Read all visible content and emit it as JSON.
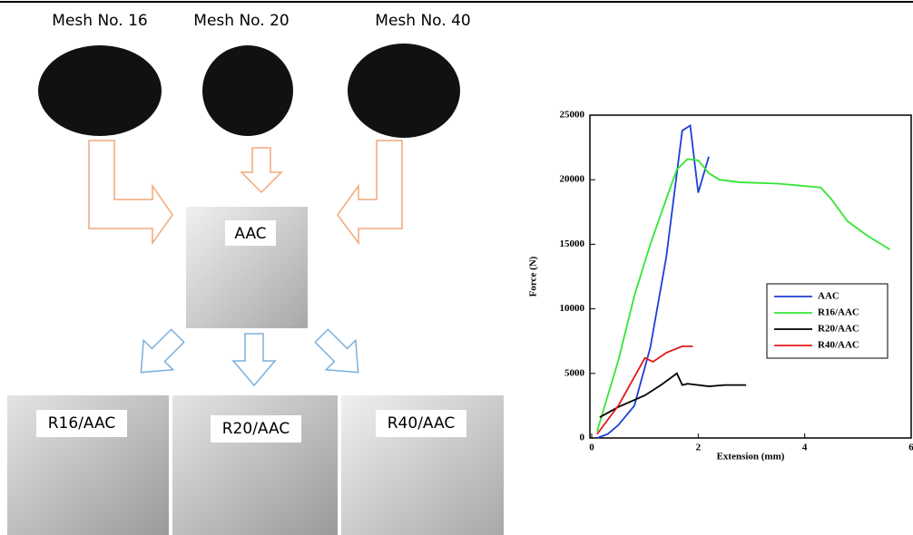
{
  "diagram": {
    "sources": [
      "Mesh No. 16",
      "Mesh No. 20",
      "Mesh No. 40"
    ],
    "center": "AAC",
    "products": [
      "R16/AAC",
      "R20/AAC",
      "R40/AAC"
    ]
  },
  "chart_data": {
    "type": "line",
    "xlabel": "Extension (mm)",
    "ylabel": "Force (N)",
    "xlim": [
      0,
      6
    ],
    "ylim": [
      0,
      25000
    ],
    "xticks": [
      0,
      2,
      4,
      6
    ],
    "yticks": [
      0,
      5000,
      10000,
      15000,
      20000,
      25000
    ],
    "legend": "right",
    "series": [
      {
        "name": "AAC",
        "color": "#1f3fd6",
        "x": [
          0.1,
          0.3,
          0.5,
          0.8,
          1.1,
          1.4,
          1.7,
          1.85,
          2.0,
          2.2
        ],
        "values": [
          0,
          300,
          1000,
          2500,
          7000,
          14000,
          23800,
          24200,
          19000,
          21800
        ]
      },
      {
        "name": "R16/AAC",
        "color": "#33e633",
        "x": [
          0.1,
          0.5,
          0.8,
          1.1,
          1.4,
          1.6,
          1.8,
          2.0,
          2.2,
          2.4,
          2.8,
          3.5,
          4.3,
          4.5,
          4.8,
          5.2,
          5.6
        ],
        "values": [
          500,
          6000,
          11000,
          15000,
          18500,
          20800,
          21600,
          21500,
          20500,
          20000,
          19800,
          19700,
          19400,
          18500,
          16800,
          15600,
          14600
        ]
      },
      {
        "name": "R20/AAC",
        "color": "#000000",
        "x": [
          0.15,
          0.5,
          1.0,
          1.3,
          1.6,
          1.7,
          1.8,
          2.2,
          2.5,
          2.9
        ],
        "values": [
          1600,
          2400,
          3300,
          4100,
          5000,
          4100,
          4200,
          4000,
          4100,
          4100
        ]
      },
      {
        "name": "R40/AAC",
        "color": "#e01818",
        "x": [
          0.1,
          0.5,
          1.0,
          1.15,
          1.4,
          1.7,
          1.9
        ],
        "values": [
          300,
          2500,
          6200,
          5900,
          6600,
          7100,
          7100
        ]
      }
    ]
  }
}
